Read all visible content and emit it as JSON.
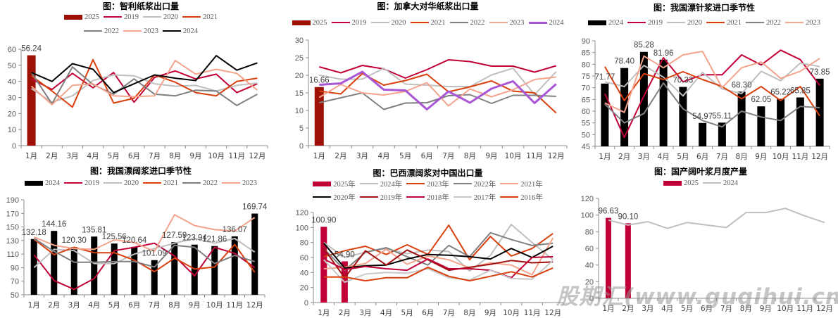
{
  "months": [
    "1月",
    "2月",
    "3月",
    "4月",
    "5月",
    "6月",
    "7月",
    "8月",
    "9月",
    "10月",
    "11月",
    "12月"
  ],
  "watermark": "股期汇(www.guqihui.cn)",
  "chart_data": [
    {
      "id": "chile-pulp-export",
      "type": "bar+line",
      "title": "图：智利纸浆出口量",
      "ylim": [
        0,
        60
      ],
      "ystep": 10,
      "legend_rows": [
        [
          "2025",
          "2019",
          "2020",
          "2021"
        ],
        [
          "2022",
          "2023",
          "2024"
        ]
      ],
      "bars": {
        "name": "2025",
        "color": "#9C1006",
        "values": [
          56.24
        ],
        "labels": [
          "56.24"
        ]
      },
      "series": [
        {
          "name": "2019",
          "color": "#C00036",
          "values": [
            41.5,
            35,
            45,
            36,
            45.5,
            27,
            42.5,
            46.5,
            41.5,
            44.5,
            33,
            38.5
          ]
        },
        {
          "name": "2020",
          "color": "#BFBFBF",
          "values": [
            35.5,
            27,
            31,
            40.5,
            44,
            43.5,
            38.5,
            37,
            37.5,
            34,
            37.5,
            39
          ]
        },
        {
          "name": "2021",
          "color": "#D9400E",
          "values": [
            43.5,
            34,
            24,
            53.5,
            26.5,
            29.5,
            44,
            39.5,
            33,
            31,
            40,
            42
          ]
        },
        {
          "name": "2022",
          "color": "#808080",
          "values": [
            45.5,
            26,
            49,
            38,
            32,
            41.5,
            32,
            31,
            34.5,
            34,
            25,
            32
          ]
        },
        {
          "name": "2023",
          "color": "#F4A38C",
          "values": [
            37,
            25.5,
            37.5,
            38.5,
            31,
            30.5,
            31,
            53,
            44.5,
            47.5,
            45,
            34.5
          ]
        },
        {
          "name": "2024",
          "color": "#000000",
          "values": [
            45.5,
            40,
            51,
            47.5,
            33,
            38.5,
            44,
            42,
            40.5,
            56,
            47,
            51.5
          ]
        }
      ]
    },
    {
      "id": "canada-pulp-export-china",
      "type": "bar+line",
      "title": "图：加拿大对华纸浆出口量",
      "ylim": [
        0,
        30
      ],
      "ystep": 5,
      "legend_rows": [
        [
          "2025",
          "2019",
          "2020",
          "2021",
          "2022",
          "2023",
          "2024"
        ]
      ],
      "bars": {
        "name": "2025",
        "color": "#9C1006",
        "values": [
          16.66
        ],
        "labels": [
          "16.66"
        ]
      },
      "series": [
        {
          "name": "2019",
          "color": "#C00036",
          "values": [
            22.4,
            20.7,
            22.8,
            21.8,
            19.2,
            21.6,
            24.4,
            23.9,
            22.6,
            22.6,
            20.9,
            22.7
          ]
        },
        {
          "name": "2020",
          "color": "#BFBFBF",
          "values": [
            20,
            18.9,
            18.9,
            22,
            17.5,
            17.2,
            16.8,
            16.8,
            20.1,
            22,
            14.5,
            21
          ]
        },
        {
          "name": "2021",
          "color": "#D9400E",
          "values": [
            15.5,
            14.7,
            20.5,
            17.2,
            18.5,
            20.3,
            15.3,
            16.7,
            18.4,
            15.5,
            15,
            9.3
          ]
        },
        {
          "name": "2022",
          "color": "#808080",
          "values": [
            12.2,
            13.6,
            15,
            10.3,
            12.1,
            12.2,
            14.2,
            14.5,
            12,
            14.3,
            14.3,
            14
          ]
        },
        {
          "name": "2023",
          "color": "#F4A38C",
          "values": [
            13.7,
            17.4,
            15,
            14.4,
            15.4,
            17.9,
            11.3,
            16.1,
            13.9,
            15.9,
            18.8,
            19.5
          ]
        },
        {
          "name": "2024",
          "color": "#A855D6",
          "width": 3,
          "values": [
            17.3,
            17.7,
            21,
            15.9,
            15.7,
            10.3,
            15.4,
            12.2,
            16.2,
            18.3,
            12.1,
            17.5
          ]
        }
      ]
    },
    {
      "id": "china-softwood-import-seasonality",
      "type": "bar+line",
      "title": "图：我国漂针浆进口季节性",
      "ylim": [
        45,
        90
      ],
      "ystep": 5,
      "legend_rows": [
        [
          "2024",
          "2019",
          "2020",
          "2021",
          "2022",
          "2023"
        ]
      ],
      "bars": {
        "name": "2024",
        "color": "#000000",
        "values": [
          71.77,
          78.4,
          85.28,
          81.96,
          70.33,
          54.97,
          55.11,
          68.3,
          62.05,
          65.22,
          65.85,
          73.85
        ],
        "labels": [
          "71.77",
          "78.40",
          "85.28",
          "81.96",
          "70.33",
          "54.97",
          "55.11",
          "68.30",
          "62.05",
          "65.22",
          "65.85",
          "73.85"
        ]
      },
      "series": [
        {
          "name": "2019",
          "color": "#C00036",
          "values": [
            67.5,
            48.8,
            66.5,
            82.8,
            72.5,
            75.5,
            75.5,
            84,
            79.7,
            86,
            82,
            71
          ]
        },
        {
          "name": "2020",
          "color": "#BFBFBF",
          "values": [
            72.5,
            70.5,
            79.5,
            74.5,
            66.5,
            76.5,
            69.5,
            67.5,
            77,
            73,
            80.5,
            79
          ]
        },
        {
          "name": "2021",
          "color": "#D9400E",
          "values": [
            79,
            64.5,
            76,
            73.5,
            76.8,
            73.5,
            70.5,
            65.3,
            70.5,
            64.5,
            70.5,
            58
          ]
        },
        {
          "name": "2022",
          "color": "#808080",
          "values": [
            63,
            55,
            59,
            72,
            61,
            56,
            53.3,
            60,
            57.5,
            56,
            62,
            61.5
          ]
        },
        {
          "name": "2023",
          "color": "#F4A38C",
          "values": [
            63.5,
            59.5,
            83.5,
            78.5,
            84,
            85.5,
            70,
            78.5,
            81,
            74,
            77,
            82.5
          ]
        }
      ]
    },
    {
      "id": "china-hardwood-import-seasonality",
      "type": "bar+line",
      "title": "图：我国漂阔浆进口季节性",
      "ylim": [
        50,
        190
      ],
      "ystep": 20,
      "legend_rows": [
        [
          "2024",
          "2019",
          "2020",
          "2021",
          "2022",
          "2023"
        ]
      ],
      "bars": {
        "name": "2024",
        "color": "#000000",
        "values": [
          132.18,
          144.16,
          120.3,
          135.81,
          125.56,
          120.64,
          101.09,
          127.59,
          123.94,
          121.86,
          136.07,
          169.74
        ],
        "labels": [
          "132.18",
          "144.16",
          "120.30",
          "135.81",
          "125.56",
          "120.64",
          "101.09",
          "127.59",
          "123.94",
          "121.86",
          "136.07",
          "169.74"
        ]
      },
      "series": [
        {
          "name": "2019",
          "color": "#C00036",
          "values": [
            109,
            71,
            58,
            74,
            115,
            120,
            126,
            107,
            78,
            120,
            111,
            90
          ]
        },
        {
          "name": "2020",
          "color": "#BFBFBF",
          "values": [
            90,
            117,
            115,
            96,
            96,
            110,
            118,
            126,
            133,
            126,
            133,
            113
          ]
        },
        {
          "name": "2021",
          "color": "#D9400E",
          "values": [
            132,
            109,
            120,
            112,
            112,
            101,
            84,
            104,
            88,
            91,
            124,
            83
          ]
        },
        {
          "name": "2022",
          "color": "#808080",
          "values": [
            133,
            114,
            98,
            98,
            99,
            99,
            91,
            123,
            120,
            96,
            108,
            99
          ]
        },
        {
          "name": "2023",
          "color": "#F4A38C",
          "values": [
            135,
            123,
            118,
            117,
            131,
            127,
            114,
            168,
            152,
            146,
            144,
            164
          ]
        }
      ]
    },
    {
      "id": "brazil-hardwood-export-china",
      "type": "bar+line",
      "title": "图：巴西漂阔浆对中国出口量",
      "ylim": [
        0,
        120
      ],
      "ystep": 20,
      "legend_rows": [
        [
          "2025年",
          "2024年",
          "2023年",
          "2022年",
          "2021年"
        ],
        [
          "2020年",
          "2019年",
          "2018年",
          "2017年",
          "2016年"
        ]
      ],
      "bars": {
        "name": "2025年",
        "color": "#C00036",
        "values": [
          100.9,
          54.9
        ],
        "labels": [
          "100.90",
          "54.90"
        ]
      },
      "series": [
        {
          "name": "2024年",
          "color": "#BFBFBF",
          "values": [
            80,
            60,
            67,
            72,
            65,
            70,
            68,
            42,
            63,
            104,
            80,
            57
          ]
        },
        {
          "name": "2023年",
          "color": "#D9400E",
          "values": [
            61,
            69,
            75,
            64,
            77,
            64,
            103,
            57,
            88,
            62,
            72,
            92
          ]
        },
        {
          "name": "2022年",
          "color": "#808080",
          "values": [
            72,
            43,
            67,
            73,
            61,
            50,
            76,
            61,
            93,
            84,
            76,
            79
          ]
        },
        {
          "name": "2021年",
          "color": "#F4A38C",
          "values": [
            45,
            47,
            52,
            71,
            51,
            62,
            57,
            46,
            53,
            50,
            37,
            86
          ]
        },
        {
          "name": "2020年",
          "color": "#000000",
          "values": [
            79,
            46,
            49,
            50,
            58,
            64,
            63,
            61,
            58,
            72,
            60,
            75
          ]
        },
        {
          "name": "2019年",
          "color": "#A01010",
          "values": [
            72,
            33,
            69,
            50,
            70,
            57,
            43,
            47,
            51,
            56,
            53,
            54
          ]
        },
        {
          "name": "2018年",
          "color": "#C00036",
          "values": [
            58,
            44,
            48,
            45,
            43,
            58,
            45,
            45,
            43,
            33,
            60,
            61
          ]
        },
        {
          "name": "2017年",
          "color": "#C8C8C8",
          "values": [
            57,
            27,
            38,
            40,
            39,
            45,
            33,
            30,
            43,
            32,
            31,
            56
          ]
        },
        {
          "name": "2016年",
          "color": "#D9400E",
          "values": [
            34,
            34,
            29,
            33,
            33,
            47,
            35,
            29,
            35,
            41,
            34,
            46
          ]
        }
      ]
    },
    {
      "id": "china-hardwood-production",
      "type": "bar+line",
      "title": "图：国产阔叶浆月度产量",
      "ylim": [
        0,
        120
      ],
      "ystep": 20,
      "legend_rows": [
        [
          "2025",
          "2024"
        ]
      ],
      "bars": {
        "name": "2025",
        "color": "#C00036",
        "values": [
          96.63,
          90.1
        ],
        "labels": [
          "96.63",
          "90.10"
        ]
      },
      "series": [
        {
          "name": "2024",
          "color": "#BFBFBF",
          "values": [
            94,
            88,
            92,
            84,
            91,
            88,
            85,
            103,
            103,
            108,
            99,
            91
          ]
        }
      ]
    }
  ]
}
